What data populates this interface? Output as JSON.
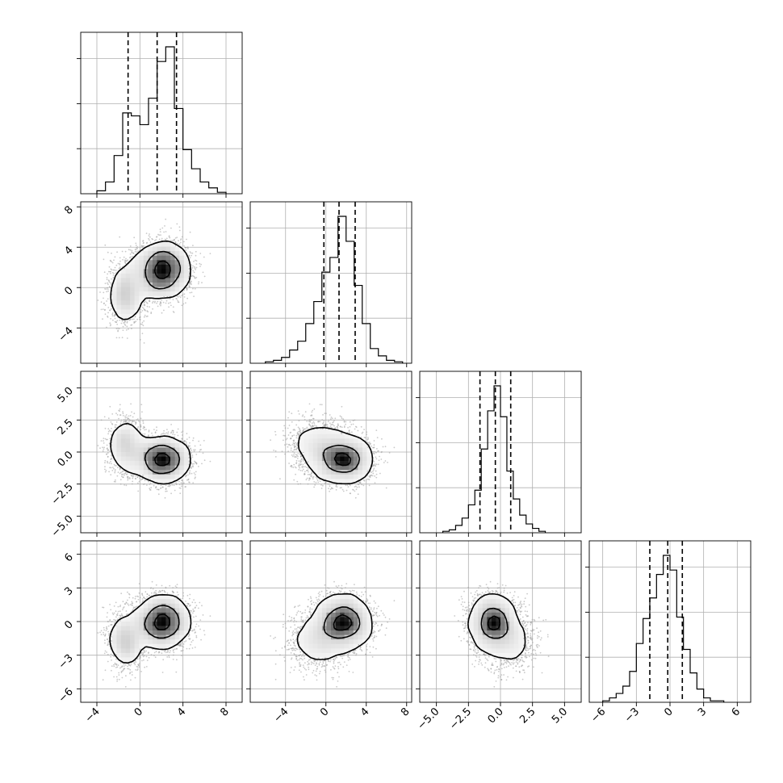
{
  "chart_data": {
    "type": "corner",
    "n_params": 4,
    "grid": true,
    "colors": {
      "line": "#000000",
      "grid": "#b0b0b0",
      "scatter": "#9e9e9e"
    },
    "params": [
      {
        "range": [
          -5.5,
          9.5
        ],
        "ticks": [
          -4,
          0,
          4,
          8
        ],
        "tick_labels": [
          "−4",
          "0",
          "4",
          "8"
        ],
        "quantiles": [
          -1.1,
          1.6,
          3.4
        ],
        "hist": {
          "edges": [
            -4.0,
            -3.2,
            -2.4,
            -1.6,
            -0.8,
            0.0,
            0.8,
            1.6,
            2.4,
            3.2,
            4.0,
            4.8,
            5.6,
            6.4,
            7.2,
            8.0
          ],
          "counts": [
            2,
            8,
            26,
            55,
            53,
            47,
            65,
            90,
            100,
            58,
            30,
            17,
            8,
            4,
            1
          ]
        }
      },
      {
        "range": [
          -7.5,
          8.5
        ],
        "ticks": [
          -4,
          0,
          4,
          8
        ],
        "tick_labels": [
          "−4",
          "0",
          "4",
          "8"
        ],
        "quantiles": [
          -0.2,
          1.3,
          2.9
        ],
        "hist": {
          "edges": [
            -6.0,
            -5.2,
            -4.4,
            -3.6,
            -2.8,
            -2.0,
            -1.2,
            -0.4,
            0.4,
            1.2,
            2.0,
            2.8,
            3.6,
            4.4,
            5.2,
            6.0,
            6.8,
            7.6
          ],
          "counts": [
            1,
            2,
            4,
            9,
            15,
            27,
            42,
            62,
            72,
            100,
            83,
            53,
            27,
            10,
            5,
            2,
            1
          ]
        }
      },
      {
        "range": [
          -6.3,
          6.3
        ],
        "ticks": [
          -5.0,
          -2.5,
          0.0,
          2.5,
          5.0
        ],
        "tick_labels": [
          "−5.0",
          "−2.5",
          "0.0",
          "2.5",
          "5.0"
        ],
        "quantiles": [
          -1.6,
          -0.4,
          0.8
        ],
        "hist": {
          "edges": [
            -4.5,
            -4.0,
            -3.5,
            -3.0,
            -2.5,
            -2.0,
            -1.5,
            -1.0,
            -0.5,
            0.0,
            0.5,
            1.0,
            1.5,
            2.0,
            2.5,
            3.0,
            3.5
          ],
          "counts": [
            1,
            2,
            5,
            10,
            19,
            29,
            57,
            83,
            100,
            79,
            42,
            23,
            12,
            6,
            3,
            1
          ]
        }
      },
      {
        "range": [
          -7.2,
          7.2
        ],
        "ticks": [
          -6,
          -3,
          0,
          3,
          6
        ],
        "tick_labels": [
          "−6",
          "−3",
          "0",
          "3",
          "6"
        ],
        "quantiles": [
          -1.8,
          -0.2,
          1.1
        ],
        "hist": {
          "edges": [
            -6.0,
            -5.4,
            -4.8,
            -4.2,
            -3.6,
            -3.0,
            -2.4,
            -1.8,
            -1.2,
            -0.6,
            0.0,
            0.6,
            1.2,
            1.8,
            2.4,
            3.0,
            3.6,
            4.2,
            4.8
          ],
          "counts": [
            1,
            3,
            6,
            11,
            21,
            40,
            57,
            71,
            87,
            100,
            90,
            58,
            36,
            20,
            9,
            3,
            1,
            1
          ]
        }
      }
    ]
  }
}
